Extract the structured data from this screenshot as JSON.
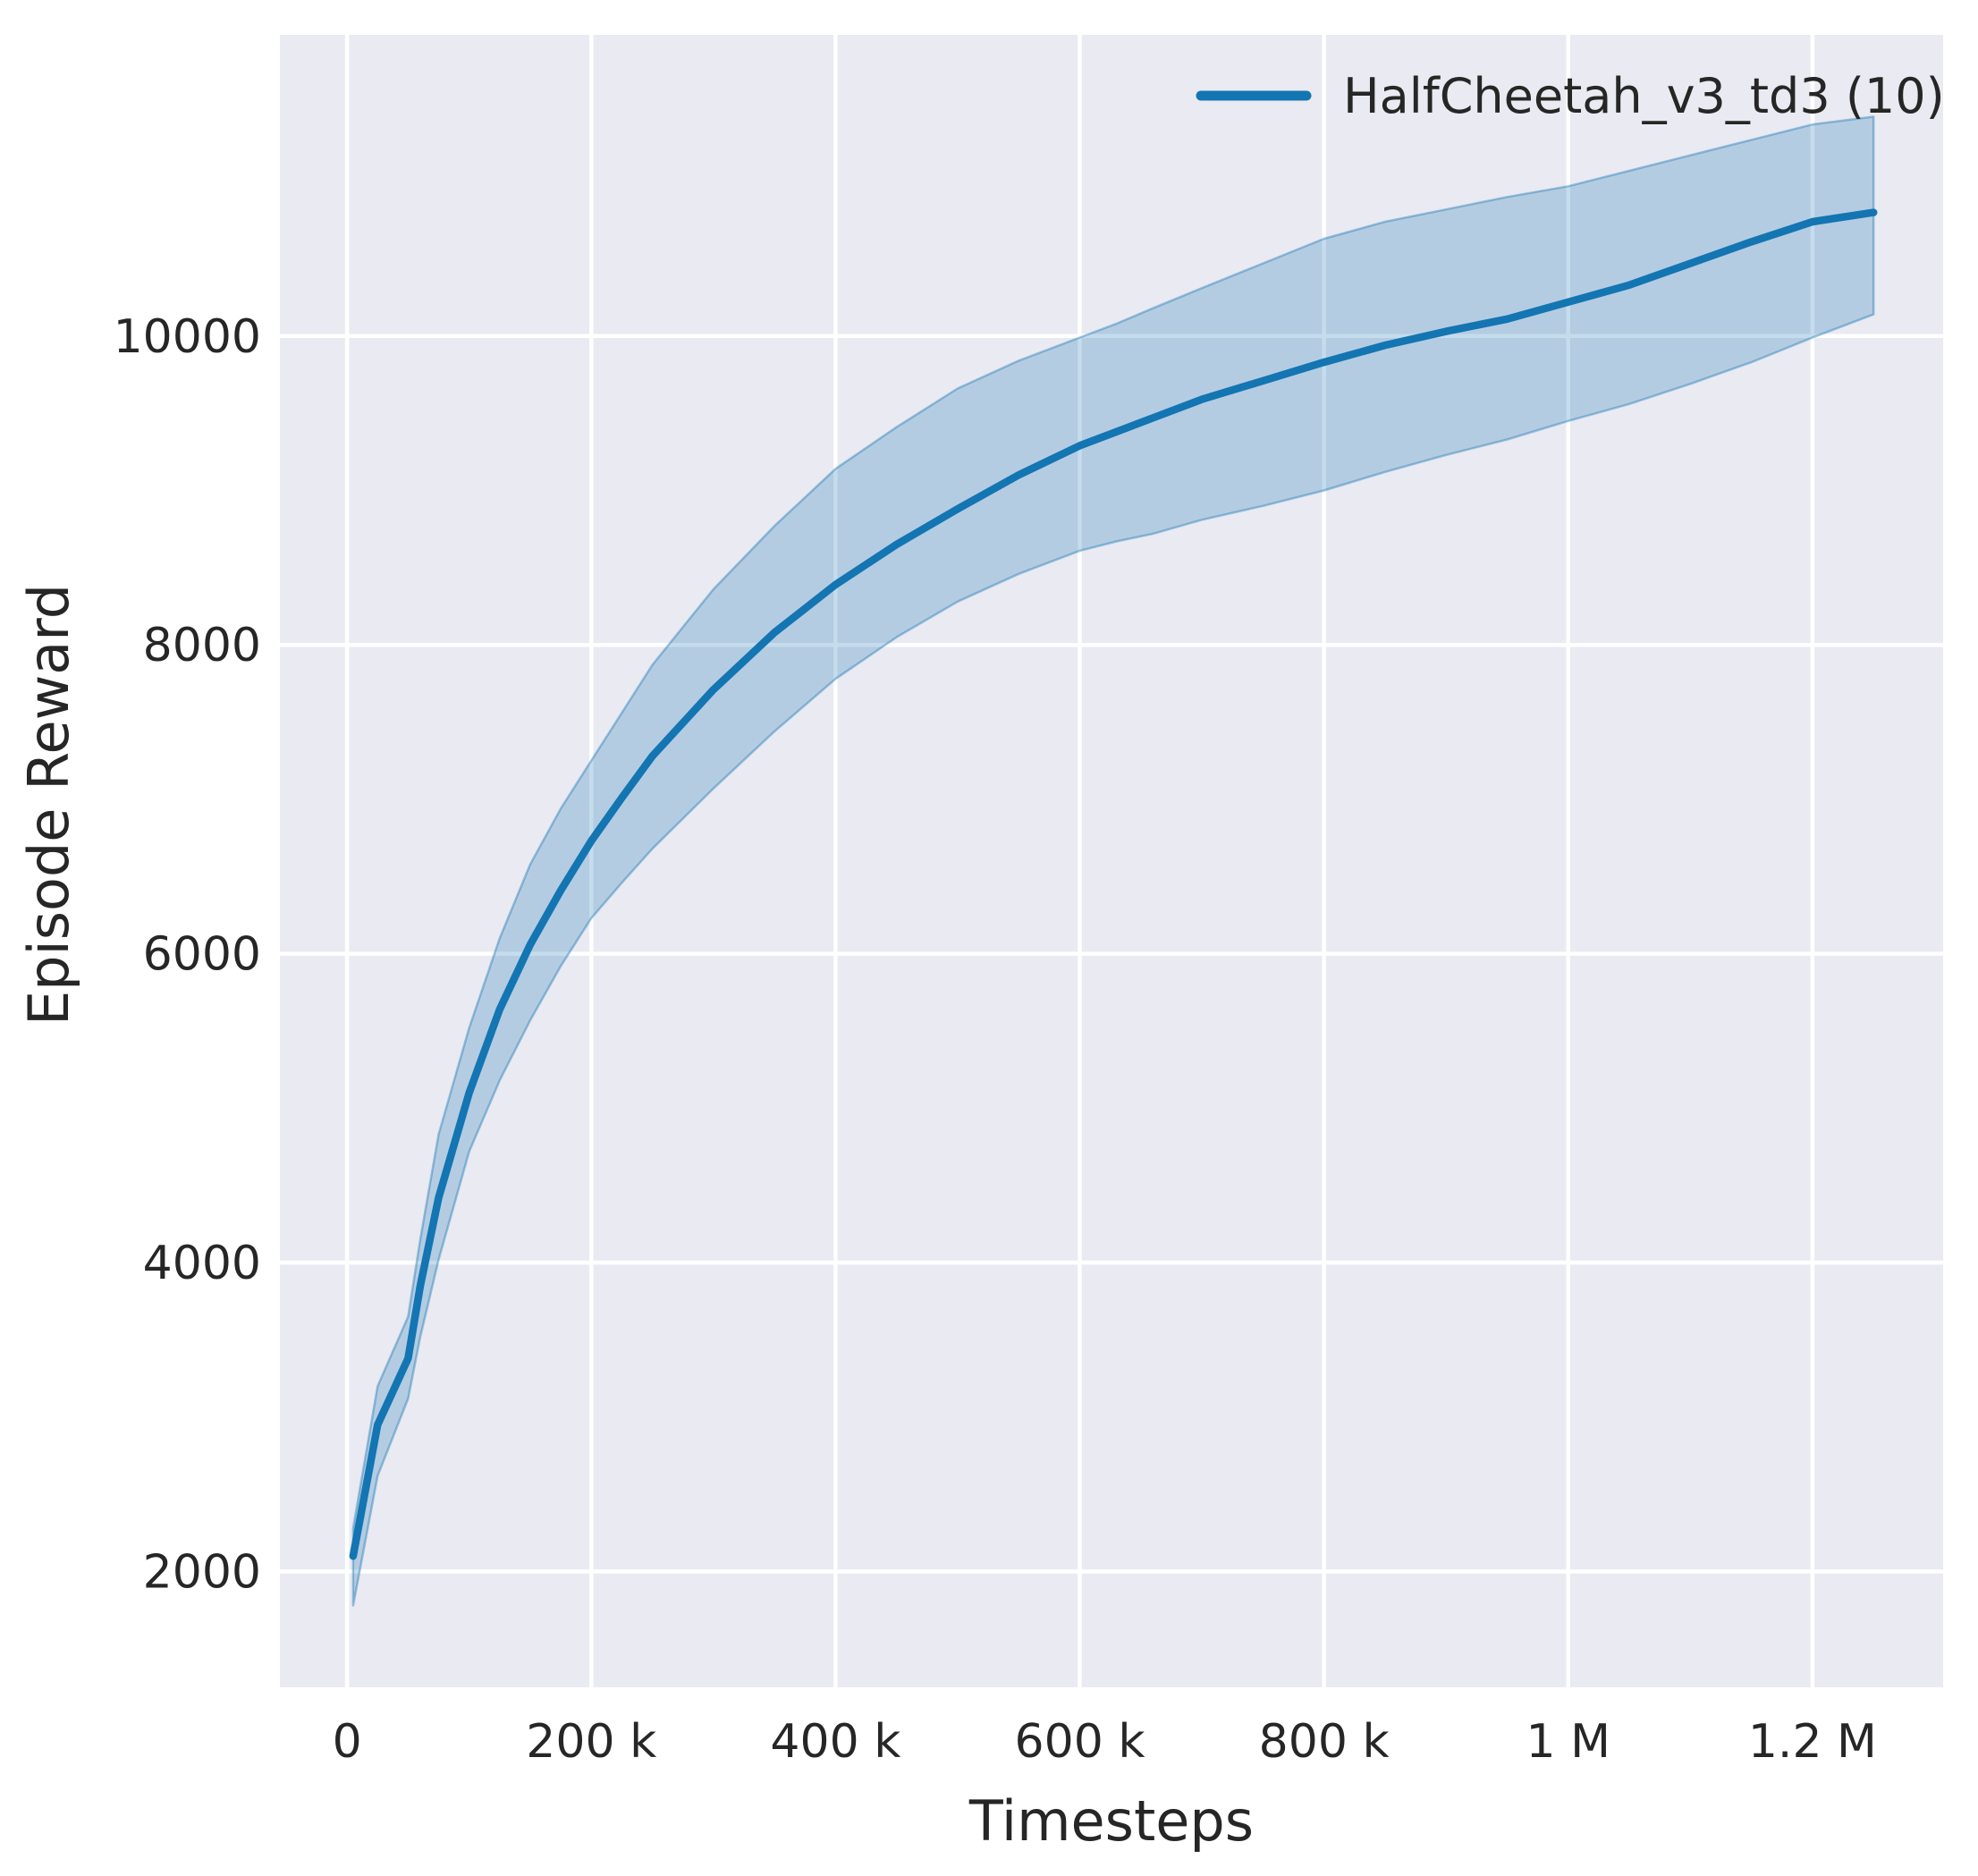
{
  "figure": {
    "background_color": "#ffffff",
    "plot_background_color": "#eaeaf2",
    "grid_color": "#ffffff",
    "tick_text_color": "#262626"
  },
  "chart_data": {
    "type": "line",
    "title": "",
    "xlabel": "Timesteps",
    "ylabel": "Episode Reward",
    "grid": true,
    "legend_position": "upper right",
    "legend": [
      {
        "label": "HalfCheetah_v3_td3 (10)",
        "color": "#1375b2"
      }
    ],
    "xlim": [
      -55000,
      1307000
    ],
    "ylim": [
      1250,
      11950
    ],
    "x_ticks": [
      {
        "value": 0,
        "label": "0"
      },
      {
        "value": 200000,
        "label": "200 k"
      },
      {
        "value": 400000,
        "label": "400 k"
      },
      {
        "value": 600000,
        "label": "600 k"
      },
      {
        "value": 800000,
        "label": "800 k"
      },
      {
        "value": 1000000,
        "label": "1 M"
      },
      {
        "value": 1200000,
        "label": "1.2 M"
      }
    ],
    "y_ticks": [
      {
        "value": 2000,
        "label": "2000"
      },
      {
        "value": 4000,
        "label": "4000"
      },
      {
        "value": 6000,
        "label": "6000"
      },
      {
        "value": 8000,
        "label": "8000"
      },
      {
        "value": 10000,
        "label": "10000"
      }
    ],
    "series": [
      {
        "name": "HalfCheetah_v3_td3 (10)",
        "color": "#1375b2",
        "band_fill_opacity": 0.25,
        "band_edge_opacity": 0.4,
        "x": [
          5000,
          25000,
          50000,
          60000,
          75000,
          100000,
          125000,
          150000,
          175000,
          200000,
          225000,
          250000,
          300000,
          350000,
          400000,
          450000,
          500000,
          550000,
          600000,
          630000,
          660000,
          700000,
          750000,
          800000,
          850000,
          900000,
          950000,
          1000000,
          1050000,
          1100000,
          1150000,
          1200000,
          1250000
        ],
        "mean": [
          2100,
          2950,
          3380,
          3850,
          4420,
          5100,
          5640,
          6060,
          6410,
          6730,
          7010,
          7280,
          7710,
          8080,
          8390,
          8650,
          8880,
          9100,
          9290,
          9380,
          9470,
          9590,
          9710,
          9830,
          9940,
          10030,
          10110,
          10220,
          10330,
          10470,
          10610,
          10740,
          10800
        ],
        "lower": [
          1780,
          2620,
          3120,
          3520,
          4020,
          4720,
          5180,
          5570,
          5920,
          6230,
          6460,
          6680,
          7070,
          7440,
          7780,
          8050,
          8280,
          8460,
          8610,
          8670,
          8720,
          8810,
          8900,
          9000,
          9120,
          9230,
          9330,
          9450,
          9560,
          9690,
          9830,
          9990,
          10140
        ],
        "upper": [
          2280,
          3200,
          3650,
          4150,
          4830,
          5520,
          6100,
          6580,
          6940,
          7250,
          7560,
          7870,
          8360,
          8770,
          9140,
          9410,
          9660,
          9840,
          9990,
          10080,
          10180,
          10310,
          10470,
          10630,
          10740,
          10820,
          10900,
          10970,
          11070,
          11170,
          11270,
          11370,
          11420
        ]
      }
    ]
  }
}
